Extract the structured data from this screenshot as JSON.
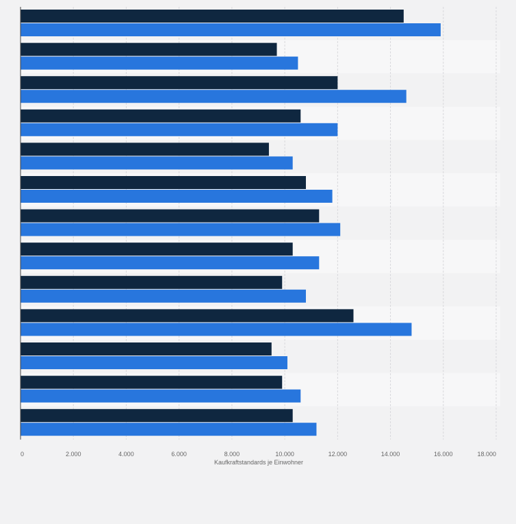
{
  "chart_data": {
    "type": "bar",
    "orientation": "horizontal",
    "categories": [
      "",
      "",
      "",
      "",
      "",
      "",
      "",
      "",
      "",
      "",
      "",
      "",
      ""
    ],
    "series": [
      {
        "color": "#0f2740",
        "values": [
          14500,
          9700,
          12000,
          10600,
          9400,
          10800,
          11300,
          10300,
          9900,
          12600,
          9500,
          9900,
          10300
        ]
      },
      {
        "color": "#2876dd",
        "values": [
          15900,
          10500,
          14600,
          12000,
          10300,
          11800,
          12100,
          11300,
          10800,
          14800,
          10100,
          10600,
          11200
        ]
      }
    ],
    "xlabel": "Kaufkraftstandards je Einwohner",
    "xlim": [
      0,
      18000
    ],
    "x_ticks": [
      "0",
      "2.000",
      "4.000",
      "6.000",
      "8.000",
      "10.000",
      "12.000",
      "14.000",
      "16.000",
      "18.000"
    ],
    "x_tick_values": [
      0,
      2000,
      4000,
      6000,
      8000,
      10000,
      12000,
      14000,
      16000,
      18000
    ],
    "grid": true,
    "legend": "none"
  },
  "colors": {
    "background": "#f2f2f3",
    "band_alt": "#f7f7f8",
    "gridline": "#d8d8dc",
    "axis": "#444444",
    "tick_text": "#666666"
  }
}
